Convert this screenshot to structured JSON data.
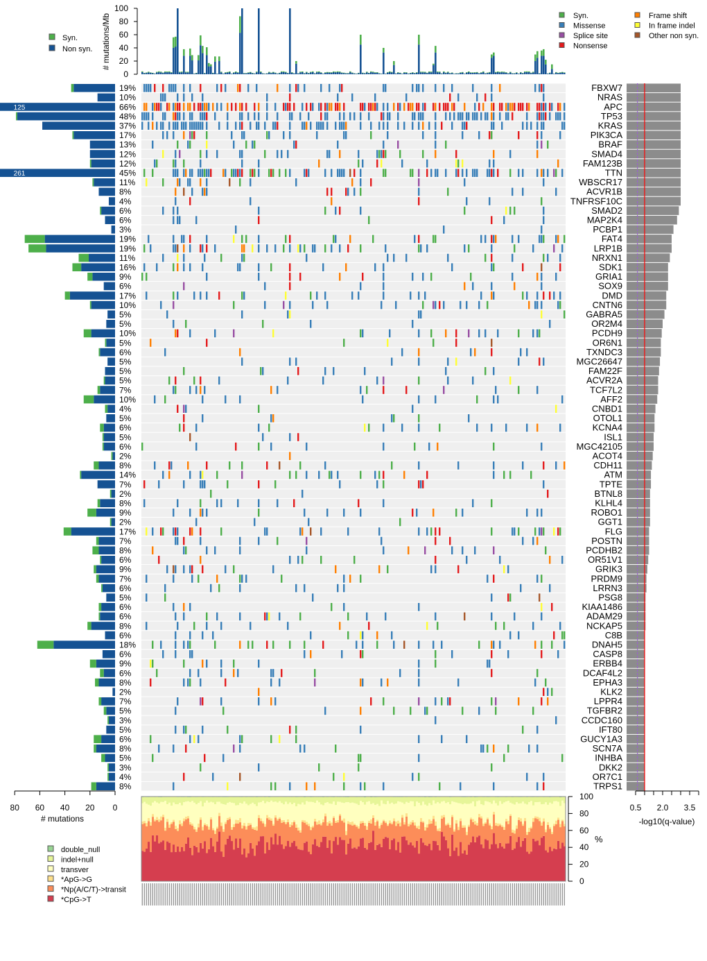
{
  "chart_data": {
    "type": "heatmap",
    "title": "",
    "n_samples": 204,
    "top_chart": {
      "type": "bar",
      "ylabel": "# mutations/Mb",
      "yticks": [
        0,
        20,
        40,
        60,
        80,
        100
      ],
      "ylim": [
        0,
        100
      ],
      "legend": [
        {
          "label": "Syn.",
          "color": "#4daf4a"
        },
        {
          "label": "Non syn.",
          "color": "#155293"
        }
      ],
      "spikes": [
        {
          "sample": 15,
          "nonsyn": 40,
          "syn": 16
        },
        {
          "sample": 16,
          "nonsyn": 42,
          "syn": 15
        },
        {
          "sample": 17,
          "nonsyn": 100,
          "syn": 20
        },
        {
          "sample": 20,
          "nonsyn": 28,
          "syn": 10
        },
        {
          "sample": 23,
          "nonsyn": 28,
          "syn": 11
        },
        {
          "sample": 24,
          "nonsyn": 21,
          "syn": 8
        },
        {
          "sample": 27,
          "nonsyn": 21,
          "syn": 8
        },
        {
          "sample": 28,
          "nonsyn": 44,
          "syn": 15
        },
        {
          "sample": 29,
          "nonsyn": 32,
          "syn": 11
        },
        {
          "sample": 31,
          "nonsyn": 29,
          "syn": 12
        },
        {
          "sample": 32,
          "nonsyn": 12,
          "syn": 5
        },
        {
          "sample": 33,
          "nonsyn": 12,
          "syn": 3
        },
        {
          "sample": 35,
          "nonsyn": 19,
          "syn": 8
        },
        {
          "sample": 37,
          "nonsyn": 20,
          "syn": 7
        },
        {
          "sample": 47,
          "nonsyn": 63,
          "syn": 25
        },
        {
          "sample": 48,
          "nonsyn": 100,
          "syn": 0
        },
        {
          "sample": 56,
          "nonsyn": 100,
          "syn": 20
        },
        {
          "sample": 71,
          "nonsyn": 100,
          "syn": 0
        },
        {
          "sample": 74,
          "nonsyn": 16,
          "syn": 4
        },
        {
          "sample": 105,
          "nonsyn": 45,
          "syn": 15
        },
        {
          "sample": 116,
          "nonsyn": 33,
          "syn": 7
        },
        {
          "sample": 121,
          "nonsyn": 14,
          "syn": 6
        },
        {
          "sample": 133,
          "nonsyn": 45,
          "syn": 15
        },
        {
          "sample": 140,
          "nonsyn": 14,
          "syn": 2
        },
        {
          "sample": 141,
          "nonsyn": 33,
          "syn": 10
        },
        {
          "sample": 168,
          "nonsyn": 25,
          "syn": 5
        },
        {
          "sample": 169,
          "nonsyn": 28,
          "syn": 5
        },
        {
          "sample": 189,
          "nonsyn": 20,
          "syn": 10
        },
        {
          "sample": 190,
          "nonsyn": 25,
          "syn": 10
        },
        {
          "sample": 192,
          "nonsyn": 28,
          "syn": 8
        },
        {
          "sample": 193,
          "nonsyn": 28,
          "syn": 10
        },
        {
          "sample": 194,
          "nonsyn": 15,
          "syn": 7
        },
        {
          "sample": 197,
          "nonsyn": 8,
          "syn": 7
        }
      ],
      "baseline": 3
    },
    "mutation_legend": [
      {
        "label": "Syn.",
        "color": "#4daf4a"
      },
      {
        "label": "Missense",
        "color": "#377eb8"
      },
      {
        "label": "Splice site",
        "color": "#984ea3"
      },
      {
        "label": "Nonsense",
        "color": "#e41a1c"
      },
      {
        "label": "Frame shift",
        "color": "#ff7f00"
      },
      {
        "label": "In frame indel",
        "color": "#ffff33"
      },
      {
        "label": "Other non syn.",
        "color": "#a65628"
      }
    ],
    "genes": [
      {
        "name": "FBXW7",
        "pct": "19%",
        "nonsyn": 33,
        "syn": 2,
        "q": 3.0
      },
      {
        "name": "NRAS",
        "pct": "10%",
        "nonsyn": 14,
        "syn": 0,
        "q": 3.0
      },
      {
        "name": "APC",
        "pct": "66%",
        "nonsyn": 125,
        "syn": 0,
        "q": 3.0,
        "label": "125"
      },
      {
        "name": "TP53",
        "pct": "48%",
        "nonsyn": 78,
        "syn": 1,
        "q": 3.0
      },
      {
        "name": "KRAS",
        "pct": "37%",
        "nonsyn": 58,
        "syn": 0,
        "q": 3.0
      },
      {
        "name": "PIK3CA",
        "pct": "17%",
        "nonsyn": 33,
        "syn": 1,
        "q": 3.0
      },
      {
        "name": "BRAF",
        "pct": "13%",
        "nonsyn": 20,
        "syn": 0,
        "q": 3.0
      },
      {
        "name": "SMAD4",
        "pct": "12%",
        "nonsyn": 20,
        "syn": 0,
        "q": 3.0
      },
      {
        "name": "FAM123B",
        "pct": "12%",
        "nonsyn": 19,
        "syn": 1,
        "q": 3.0
      },
      {
        "name": "TTN",
        "pct": "45%",
        "nonsyn": 261,
        "syn": 0,
        "q": 3.0,
        "label": "261"
      },
      {
        "name": "WBSCR17",
        "pct": "11%",
        "nonsyn": 17,
        "syn": 1,
        "q": 3.0
      },
      {
        "name": "ACVR1B",
        "pct": "8%",
        "nonsyn": 13,
        "syn": 0,
        "q": 3.0
      },
      {
        "name": "TNFRSF10C",
        "pct": "4%",
        "nonsyn": 5,
        "syn": 0,
        "q": 3.0
      },
      {
        "name": "SMAD2",
        "pct": "6%",
        "nonsyn": 11,
        "syn": 1,
        "q": 2.9
      },
      {
        "name": "MAP2K4",
        "pct": "6%",
        "nonsyn": 8,
        "syn": 0,
        "q": 2.8
      },
      {
        "name": "PCBP1",
        "pct": "3%",
        "nonsyn": 3,
        "syn": 0,
        "q": 2.6
      },
      {
        "name": "FAT4",
        "pct": "19%",
        "nonsyn": 56,
        "syn": 16,
        "q": 2.5
      },
      {
        "name": "LRP1B",
        "pct": "19%",
        "nonsyn": 55,
        "syn": 14,
        "q": 2.5
      },
      {
        "name": "NRXN1",
        "pct": "11%",
        "nonsyn": 21,
        "syn": 8,
        "q": 2.4
      },
      {
        "name": "SDK1",
        "pct": "16%",
        "nonsyn": 27,
        "syn": 7,
        "q": 2.3
      },
      {
        "name": "GRIA1",
        "pct": "9%",
        "nonsyn": 18,
        "syn": 4,
        "q": 2.3
      },
      {
        "name": "SOX9",
        "pct": "6%",
        "nonsyn": 9,
        "syn": 0,
        "q": 2.3
      },
      {
        "name": "DMD",
        "pct": "17%",
        "nonsyn": 36,
        "syn": 4,
        "q": 2.2
      },
      {
        "name": "CNTN6",
        "pct": "10%",
        "nonsyn": 19,
        "syn": 1,
        "q": 2.2
      },
      {
        "name": "GABRA5",
        "pct": "5%",
        "nonsyn": 6,
        "syn": 0,
        "q": 2.1
      },
      {
        "name": "OR2M4",
        "pct": "5%",
        "nonsyn": 7,
        "syn": 0,
        "q": 2.0
      },
      {
        "name": "PCDH9",
        "pct": "10%",
        "nonsyn": 19,
        "syn": 6,
        "q": 1.95
      },
      {
        "name": "OR6N1",
        "pct": "5%",
        "nonsyn": 7,
        "syn": 1,
        "q": 1.9
      },
      {
        "name": "TXNDC3",
        "pct": "6%",
        "nonsyn": 12,
        "syn": 1,
        "q": 1.9
      },
      {
        "name": "MGC26647",
        "pct": "5%",
        "nonsyn": 6,
        "syn": 0,
        "q": 1.85
      },
      {
        "name": "FAM22F",
        "pct": "5%",
        "nonsyn": 8,
        "syn": 0,
        "q": 1.8
      },
      {
        "name": "ACVR2A",
        "pct": "5%",
        "nonsyn": 8,
        "syn": 1,
        "q": 1.75
      },
      {
        "name": "TCF7L2",
        "pct": "7%",
        "nonsyn": 12,
        "syn": 2,
        "q": 1.75
      },
      {
        "name": "AFF2",
        "pct": "10%",
        "nonsyn": 17,
        "syn": 8,
        "q": 1.7
      },
      {
        "name": "CNBD1",
        "pct": "4%",
        "nonsyn": 6,
        "syn": 2,
        "q": 1.6
      },
      {
        "name": "OTOL1",
        "pct": "5%",
        "nonsyn": 7,
        "syn": 0,
        "q": 1.55
      },
      {
        "name": "KCNA4",
        "pct": "6%",
        "nonsyn": 9,
        "syn": 3,
        "q": 1.55
      },
      {
        "name": "ISL1",
        "pct": "5%",
        "nonsyn": 9,
        "syn": 1,
        "q": 1.5
      },
      {
        "name": "MGC42105",
        "pct": "6%",
        "nonsyn": 9,
        "syn": 1,
        "q": 1.5
      },
      {
        "name": "ACOT4",
        "pct": "2%",
        "nonsyn": 2,
        "syn": 1,
        "q": 1.45
      },
      {
        "name": "CDH11",
        "pct": "8%",
        "nonsyn": 13,
        "syn": 4,
        "q": 1.4
      },
      {
        "name": "ATM",
        "pct": "14%",
        "nonsyn": 27,
        "syn": 1,
        "q": 1.35
      },
      {
        "name": "TPTE",
        "pct": "7%",
        "nonsyn": 14,
        "syn": 0,
        "q": 1.35
      },
      {
        "name": "BTNL8",
        "pct": "2%",
        "nonsyn": 3,
        "syn": 1,
        "q": 1.3
      },
      {
        "name": "KLHL4",
        "pct": "8%",
        "nonsyn": 12,
        "syn": 2,
        "q": 1.3
      },
      {
        "name": "ROBO1",
        "pct": "9%",
        "nonsyn": 15,
        "syn": 7,
        "q": 1.3
      },
      {
        "name": "GGT1",
        "pct": "2%",
        "nonsyn": 3,
        "syn": 1,
        "q": 1.3
      },
      {
        "name": "FLG",
        "pct": "17%",
        "nonsyn": 35,
        "syn": 6,
        "q": 1.25
      },
      {
        "name": "POSTN",
        "pct": "7%",
        "nonsyn": 13,
        "syn": 2,
        "q": 1.25
      },
      {
        "name": "PCDHB2",
        "pct": "8%",
        "nonsyn": 13,
        "syn": 5,
        "q": 1.25
      },
      {
        "name": "OR51V1",
        "pct": "6%",
        "nonsyn": 11,
        "syn": 1,
        "q": 1.2
      },
      {
        "name": "GRIK3",
        "pct": "9%",
        "nonsyn": 15,
        "syn": 2,
        "q": 1.15
      },
      {
        "name": "PRDM9",
        "pct": "7%",
        "nonsyn": 13,
        "syn": 2,
        "q": 1.1
      },
      {
        "name": "LRRN3",
        "pct": "6%",
        "nonsyn": 10,
        "syn": 1,
        "q": 1.1
      },
      {
        "name": "PSG8",
        "pct": "5%",
        "nonsyn": 7,
        "syn": 0,
        "q": 1.05
      },
      {
        "name": "KIAA1486",
        "pct": "6%",
        "nonsyn": 11,
        "syn": 2,
        "q": 1.05
      },
      {
        "name": "ADAM29",
        "pct": "6%",
        "nonsyn": 12,
        "syn": 1,
        "q": 1.05
      },
      {
        "name": "NCKAP5",
        "pct": "8%",
        "nonsyn": 19,
        "syn": 3,
        "q": 1.05
      },
      {
        "name": "C8B",
        "pct": "6%",
        "nonsyn": 8,
        "syn": 0,
        "q": 1.0
      },
      {
        "name": "DNAH5",
        "pct": "18%",
        "nonsyn": 49,
        "syn": 13,
        "q": 1.0
      },
      {
        "name": "CASP8",
        "pct": "6%",
        "nonsyn": 10,
        "syn": 0,
        "q": 1.0
      },
      {
        "name": "ERBB4",
        "pct": "9%",
        "nonsyn": 15,
        "syn": 5,
        "q": 1.0
      },
      {
        "name": "DCAF4L2",
        "pct": "6%",
        "nonsyn": 9,
        "syn": 3,
        "q": 1.0
      },
      {
        "name": "EPHA3",
        "pct": "8%",
        "nonsyn": 13,
        "syn": 3,
        "q": 1.0
      },
      {
        "name": "KLK2",
        "pct": "2%",
        "nonsyn": 2,
        "syn": 0,
        "q": 1.0
      },
      {
        "name": "LPPR4",
        "pct": "7%",
        "nonsyn": 11,
        "syn": 2,
        "q": 1.0
      },
      {
        "name": "TGFBR2",
        "pct": "5%",
        "nonsyn": 7,
        "syn": 2,
        "q": 1.0
      },
      {
        "name": "CCDC160",
        "pct": "3%",
        "nonsyn": 5,
        "syn": 1,
        "q": 1.0
      },
      {
        "name": "IFT80",
        "pct": "5%",
        "nonsyn": 7,
        "syn": 0,
        "q": 1.0
      },
      {
        "name": "GUCY1A3",
        "pct": "6%",
        "nonsyn": 11,
        "syn": 6,
        "q": 1.0
      },
      {
        "name": "SCN7A",
        "pct": "8%",
        "nonsyn": 15,
        "syn": 2,
        "q": 1.0
      },
      {
        "name": "INHBA",
        "pct": "5%",
        "nonsyn": 8,
        "syn": 3,
        "q": 1.0
      },
      {
        "name": "DKK2",
        "pct": "3%",
        "nonsyn": 5,
        "syn": 1,
        "q": 1.0
      },
      {
        "name": "OR7C1",
        "pct": "4%",
        "nonsyn": 5,
        "syn": 1,
        "q": 1.0
      },
      {
        "name": "TRPS1",
        "pct": "8%",
        "nonsyn": 15,
        "syn": 4,
        "q": 1.0
      }
    ],
    "left_axis": {
      "xlabel": "# mutations",
      "ticks": [
        80,
        60,
        40,
        20,
        0
      ],
      "xlim": [
        80,
        0
      ]
    },
    "right_axis": {
      "xlabel": "-log10(q-value)",
      "ticks": [
        "0.5",
        "2.0",
        "3.5"
      ],
      "threshold": 1.0,
      "dashed": 0.6,
      "xlim": [
        0,
        4.0
      ]
    },
    "spectrum": {
      "type": "area",
      "ylabel": "%",
      "yticks": [
        0,
        20,
        40,
        60,
        80,
        100
      ],
      "categories": [
        {
          "label": "double_null",
          "color": "#99d594",
          "mean": 0.5
        },
        {
          "label": "indel+null",
          "color": "#e6f598",
          "mean": 7
        },
        {
          "label": "transver",
          "color": "#ffffbf",
          "mean": 22
        },
        {
          "label": "*ApG->G",
          "color": "#fee08b",
          "mean": 3
        },
        {
          "label": "*Np(A/C/T)->transit",
          "color": "#fc8d59",
          "mean": 23
        },
        {
          "label": "*CpG->T",
          "color": "#d53e4f",
          "mean": 44.5
        }
      ]
    }
  }
}
